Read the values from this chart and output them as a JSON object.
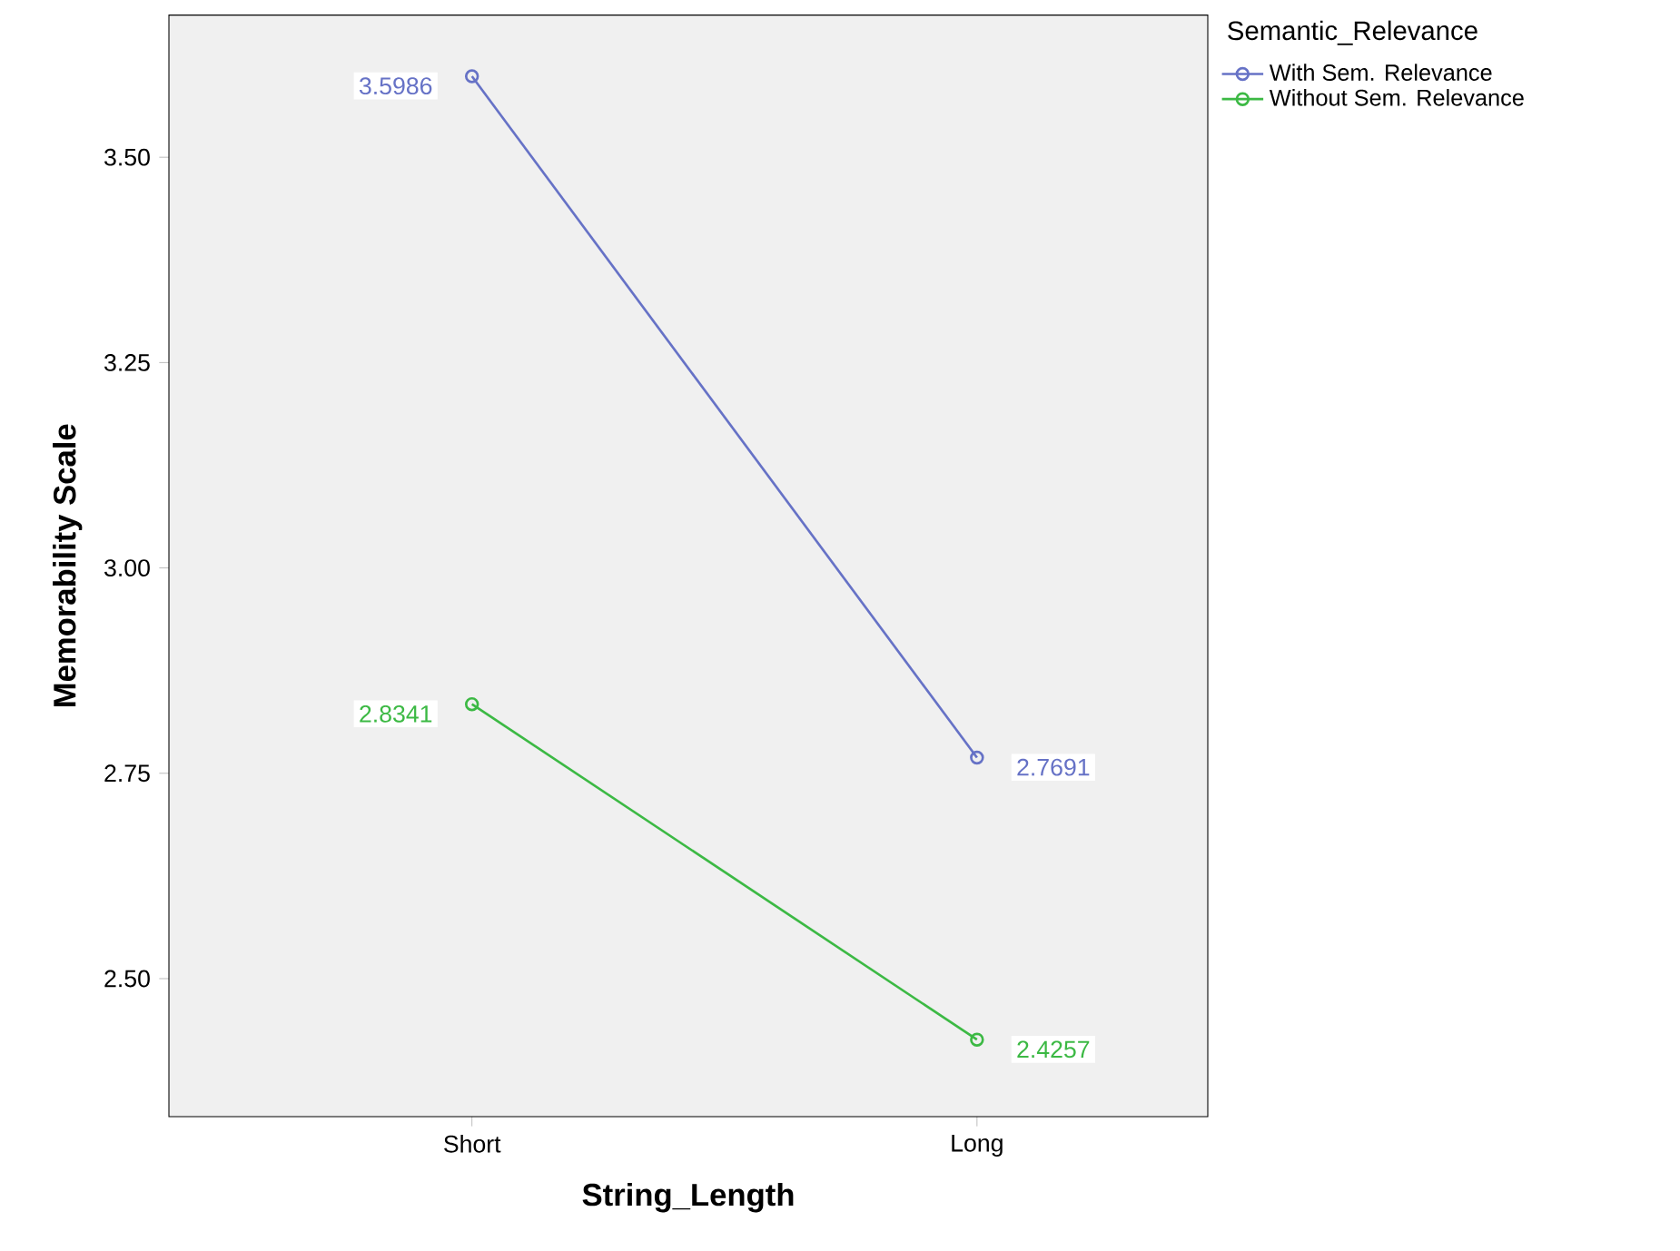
{
  "chart_data": {
    "type": "line",
    "xlabel": "String_Length",
    "ylabel": "Memorability Scale",
    "legend_title": "Semantic_Relevance",
    "categories": [
      "Short",
      "Long"
    ],
    "series": [
      {
        "name": "With Sem. Relevance",
        "color": "#6672c6",
        "values": [
          3.5986,
          2.7691
        ],
        "value_labels": [
          "3.5986",
          "2.7691"
        ]
      },
      {
        "name": "Without Sem. Relevance",
        "color": "#3cb944",
        "values": [
          2.8341,
          2.4257
        ],
        "value_labels": [
          "2.8341",
          "2.4257"
        ]
      }
    ],
    "ylim": [
      2.332,
      3.673
    ],
    "yticks": [
      {
        "value": 2.5,
        "label": "2.50"
      },
      {
        "value": 2.75,
        "label": "2.75"
      },
      {
        "value": 3.0,
        "label": "3.00"
      },
      {
        "value": 3.25,
        "label": "3.25"
      },
      {
        "value": 3.5,
        "label": "3.50"
      }
    ],
    "marker": "circle",
    "line_style": "solid",
    "grid": false,
    "legend": "right"
  }
}
